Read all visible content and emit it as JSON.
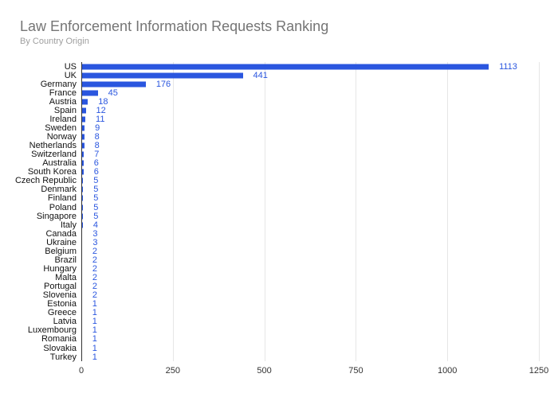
{
  "header": {
    "title": "Law Enforcement Information Requests Ranking",
    "subtitle": "By Country Origin"
  },
  "colors": {
    "bar": "#2a56df",
    "value_label": "#2a56df",
    "title": "#757575",
    "subtitle": "#9e9e9e",
    "category_label": "#111111",
    "axis_label": "#333333",
    "gridline": "#e6e6e6",
    "axis_line": "#333333",
    "background": "#ffffff"
  },
  "chart_data": {
    "type": "bar",
    "orientation": "horizontal",
    "title": "Law Enforcement Information Requests Ranking",
    "subtitle": "By Country Origin",
    "categories": [
      "US",
      "UK",
      "Germany",
      "France",
      "Austria",
      "Spain",
      "Ireland",
      "Sweden",
      "Norway",
      "Netherlands",
      "Switzerland",
      "Australia",
      "South Korea",
      "Czech Republic",
      "Denmark",
      "Finland",
      "Poland",
      "Singapore",
      "Italy",
      "Canada",
      "Ukraine",
      "Belgium",
      "Brazil",
      "Hungary",
      "Malta",
      "Portugal",
      "Slovenia",
      "Estonia",
      "Greece",
      "Latvia",
      "Luxembourg",
      "Romania",
      "Slovakia",
      "Turkey"
    ],
    "values": [
      1113,
      441,
      176,
      45,
      18,
      12,
      11,
      9,
      8,
      8,
      7,
      6,
      6,
      5,
      5,
      5,
      5,
      5,
      4,
      3,
      3,
      2,
      2,
      2,
      2,
      2,
      2,
      1,
      1,
      1,
      1,
      1,
      1,
      1
    ],
    "xlabel": "",
    "ylabel": "",
    "xlim": [
      0,
      1250
    ],
    "x_ticks": [
      0,
      250,
      500,
      750,
      1000,
      1250
    ],
    "grid": true,
    "legend": "none",
    "value_labels": true
  }
}
